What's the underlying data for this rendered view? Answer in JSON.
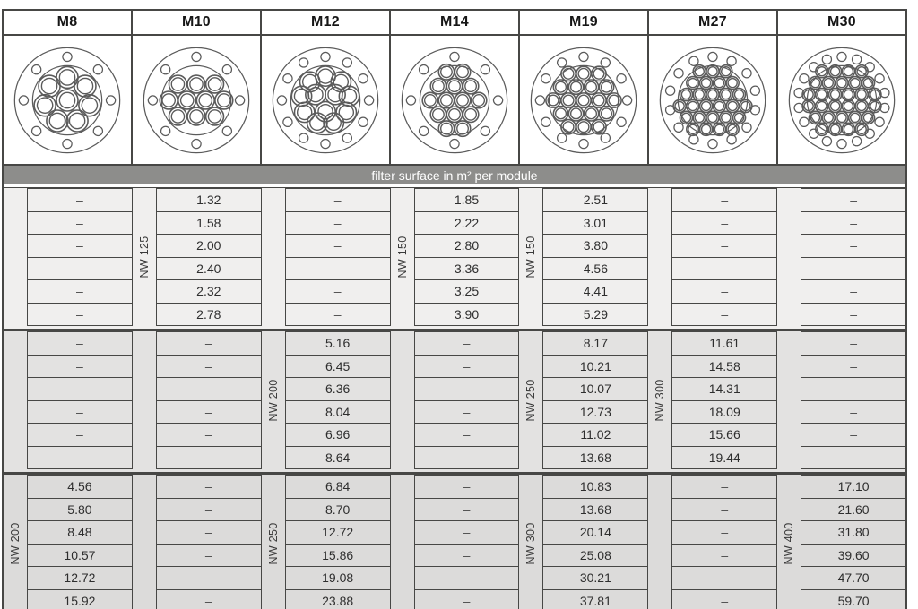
{
  "band_label": "filter surface in m² per module",
  "colors": {
    "band_bg": "#8d8d8b",
    "line": "#474745",
    "drawing_line": "#5b5b5b",
    "group_bgs": [
      "#f0efee",
      "#e3e2e1",
      "#dcdbda"
    ]
  },
  "modules": [
    {
      "name": "M8",
      "tubes": 8,
      "bolt_holes": 8,
      "flange": {
        "layout": "ring",
        "tube_r": 8.7,
        "rings": [
          {
            "n": 1,
            "r": 0,
            "phase": 0
          },
          {
            "n": 7,
            "r": 18.5,
            "phase": -90
          }
        ]
      }
    },
    {
      "name": "M10",
      "tubes": 10,
      "bolt_holes": 8,
      "flange": {
        "layout": "rows",
        "tube_r": 7.2,
        "rows": [
          3,
          4,
          3
        ]
      }
    },
    {
      "name": "M12",
      "tubes": 12,
      "bolt_holes": 12,
      "flange": {
        "layout": "ring",
        "tube_r": 8.1,
        "rings": [
          {
            "n": 3,
            "r": 9.2,
            "phase": 90
          },
          {
            "n": 9,
            "r": 19.5,
            "phase": -90
          }
        ]
      }
    },
    {
      "name": "M14",
      "tubes": 14,
      "bolt_holes": 8,
      "flange": {
        "layout": "rows",
        "tube_r": 6.3,
        "rows": [
          2,
          3,
          4,
          3,
          2
        ]
      }
    },
    {
      "name": "M19",
      "tubes": 19,
      "bolt_holes": 12,
      "flange": {
        "layout": "rows",
        "tube_r": 5.9,
        "rows": [
          3,
          4,
          5,
          4,
          3
        ]
      }
    },
    {
      "name": "M27",
      "tubes": 27,
      "bolt_holes": 14,
      "flange": {
        "layout": "rows",
        "tube_r": 5.1,
        "rows": [
          3,
          4,
          5,
          6,
          5,
          4
        ]
      }
    },
    {
      "name": "M30",
      "tubes": 30,
      "bolt_holes": 18,
      "flange": {
        "layout": "rows",
        "tube_r": 5.1,
        "rows": [
          4,
          5,
          6,
          6,
          5,
          4
        ]
      }
    }
  ],
  "groups": [
    {
      "bg": "#f0efee",
      "cells": [
        {
          "nw": "",
          "values": [
            "–",
            "–",
            "–",
            "–",
            "–",
            "–"
          ]
        },
        {
          "nw": "NW 125",
          "values": [
            "1.32",
            "1.58",
            "2.00",
            "2.40",
            "2.32",
            "2.78"
          ]
        },
        {
          "nw": "",
          "values": [
            "–",
            "–",
            "–",
            "–",
            "–",
            "–"
          ]
        },
        {
          "nw": "NW 150",
          "values": [
            "1.85",
            "2.22",
            "2.80",
            "3.36",
            "3.25",
            "3.90"
          ]
        },
        {
          "nw": "NW 150",
          "values": [
            "2.51",
            "3.01",
            "3.80",
            "4.56",
            "4.41",
            "5.29"
          ]
        },
        {
          "nw": "",
          "values": [
            "–",
            "–",
            "–",
            "–",
            "–",
            "–"
          ]
        },
        {
          "nw": "",
          "values": [
            "–",
            "–",
            "–",
            "–",
            "–",
            "–"
          ]
        }
      ]
    },
    {
      "bg": "#e3e2e1",
      "cells": [
        {
          "nw": "",
          "values": [
            "–",
            "–",
            "–",
            "–",
            "–",
            "–"
          ]
        },
        {
          "nw": "",
          "values": [
            "–",
            "–",
            "–",
            "–",
            "–",
            "–"
          ]
        },
        {
          "nw": "NW 200",
          "values": [
            "5.16",
            "6.45",
            "6.36",
            "8.04",
            "6.96",
            "8.64"
          ]
        },
        {
          "nw": "",
          "values": [
            "–",
            "–",
            "–",
            "–",
            "–",
            "–"
          ]
        },
        {
          "nw": "NW 250",
          "values": [
            "8.17",
            "10.21",
            "10.07",
            "12.73",
            "11.02",
            "13.68"
          ]
        },
        {
          "nw": "NW 300",
          "values": [
            "11.61",
            "14.58",
            "14.31",
            "18.09",
            "15.66",
            "19.44"
          ]
        },
        {
          "nw": "",
          "values": [
            "–",
            "–",
            "–",
            "–",
            "–",
            "–"
          ]
        }
      ]
    },
    {
      "bg": "#dcdbda",
      "cells": [
        {
          "nw": "NW 200",
          "values": [
            "4.56",
            "5.80",
            "8.48",
            "10.57",
            "12.72",
            "15.92"
          ]
        },
        {
          "nw": "",
          "values": [
            "–",
            "–",
            "–",
            "–",
            "–",
            "–"
          ]
        },
        {
          "nw": "NW 250",
          "values": [
            "6.84",
            "8.70",
            "12.72",
            "15.86",
            "19.08",
            "23.88"
          ]
        },
        {
          "nw": "",
          "values": [
            "–",
            "–",
            "–",
            "–",
            "–",
            "–"
          ]
        },
        {
          "nw": "NW 300",
          "values": [
            "10.83",
            "13.68",
            "20.14",
            "25.08",
            "30.21",
            "37.81"
          ]
        },
        {
          "nw": "",
          "values": [
            "–",
            "–",
            "–",
            "–",
            "–",
            "–"
          ]
        },
        {
          "nw": "NW 400",
          "values": [
            "17.10",
            "21.60",
            "31.80",
            "39.60",
            "47.70",
            "59.70"
          ]
        }
      ]
    }
  ]
}
